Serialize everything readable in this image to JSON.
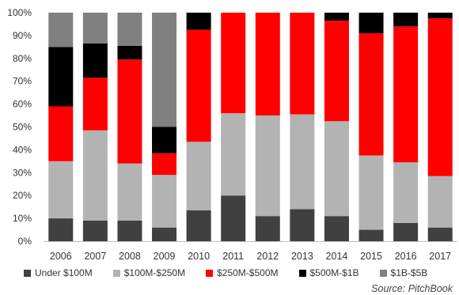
{
  "chart_data": {
    "type": "bar",
    "stacked": true,
    "categories": [
      "2006",
      "2007",
      "2008",
      "2009",
      "2010",
      "2011",
      "2012",
      "2013",
      "2014",
      "2015",
      "2016",
      "2017"
    ],
    "ylim": [
      0,
      100
    ],
    "y_ticks": [
      "0%",
      "10%",
      "20%",
      "30%",
      "40%",
      "50%",
      "60%",
      "70%",
      "80%",
      "90%",
      "100%"
    ],
    "series": [
      {
        "name": "Under $100M",
        "color": "#404040",
        "values": [
          10,
          9,
          9,
          6,
          13.5,
          20,
          11,
          14,
          11,
          5,
          8,
          6
        ]
      },
      {
        "name": "$100M-$250M",
        "color": "#b3b3b3",
        "values": [
          25,
          39.5,
          25,
          23,
          30,
          36,
          44,
          41.5,
          41.5,
          32.5,
          26.5,
          22.5
        ]
      },
      {
        "name": "$250M-$500M",
        "color": "#ff0000",
        "values": [
          24,
          23,
          45.5,
          9.5,
          49,
          44,
          45,
          44.5,
          44,
          53.5,
          59.5,
          69
        ]
      },
      {
        "name": "$500M-$1B",
        "color": "#000000",
        "values": [
          26,
          15,
          6,
          11.5,
          7.5,
          0,
          0,
          0,
          3.5,
          9,
          6,
          2.5
        ]
      },
      {
        "name": "$1B-$5B",
        "color": "#808080",
        "values": [
          15,
          13.5,
          14.5,
          50,
          0,
          0,
          0,
          0,
          0,
          0,
          0,
          0
        ]
      }
    ],
    "legend": "bottom",
    "grid": false
  },
  "source": "Source: PitchBook"
}
